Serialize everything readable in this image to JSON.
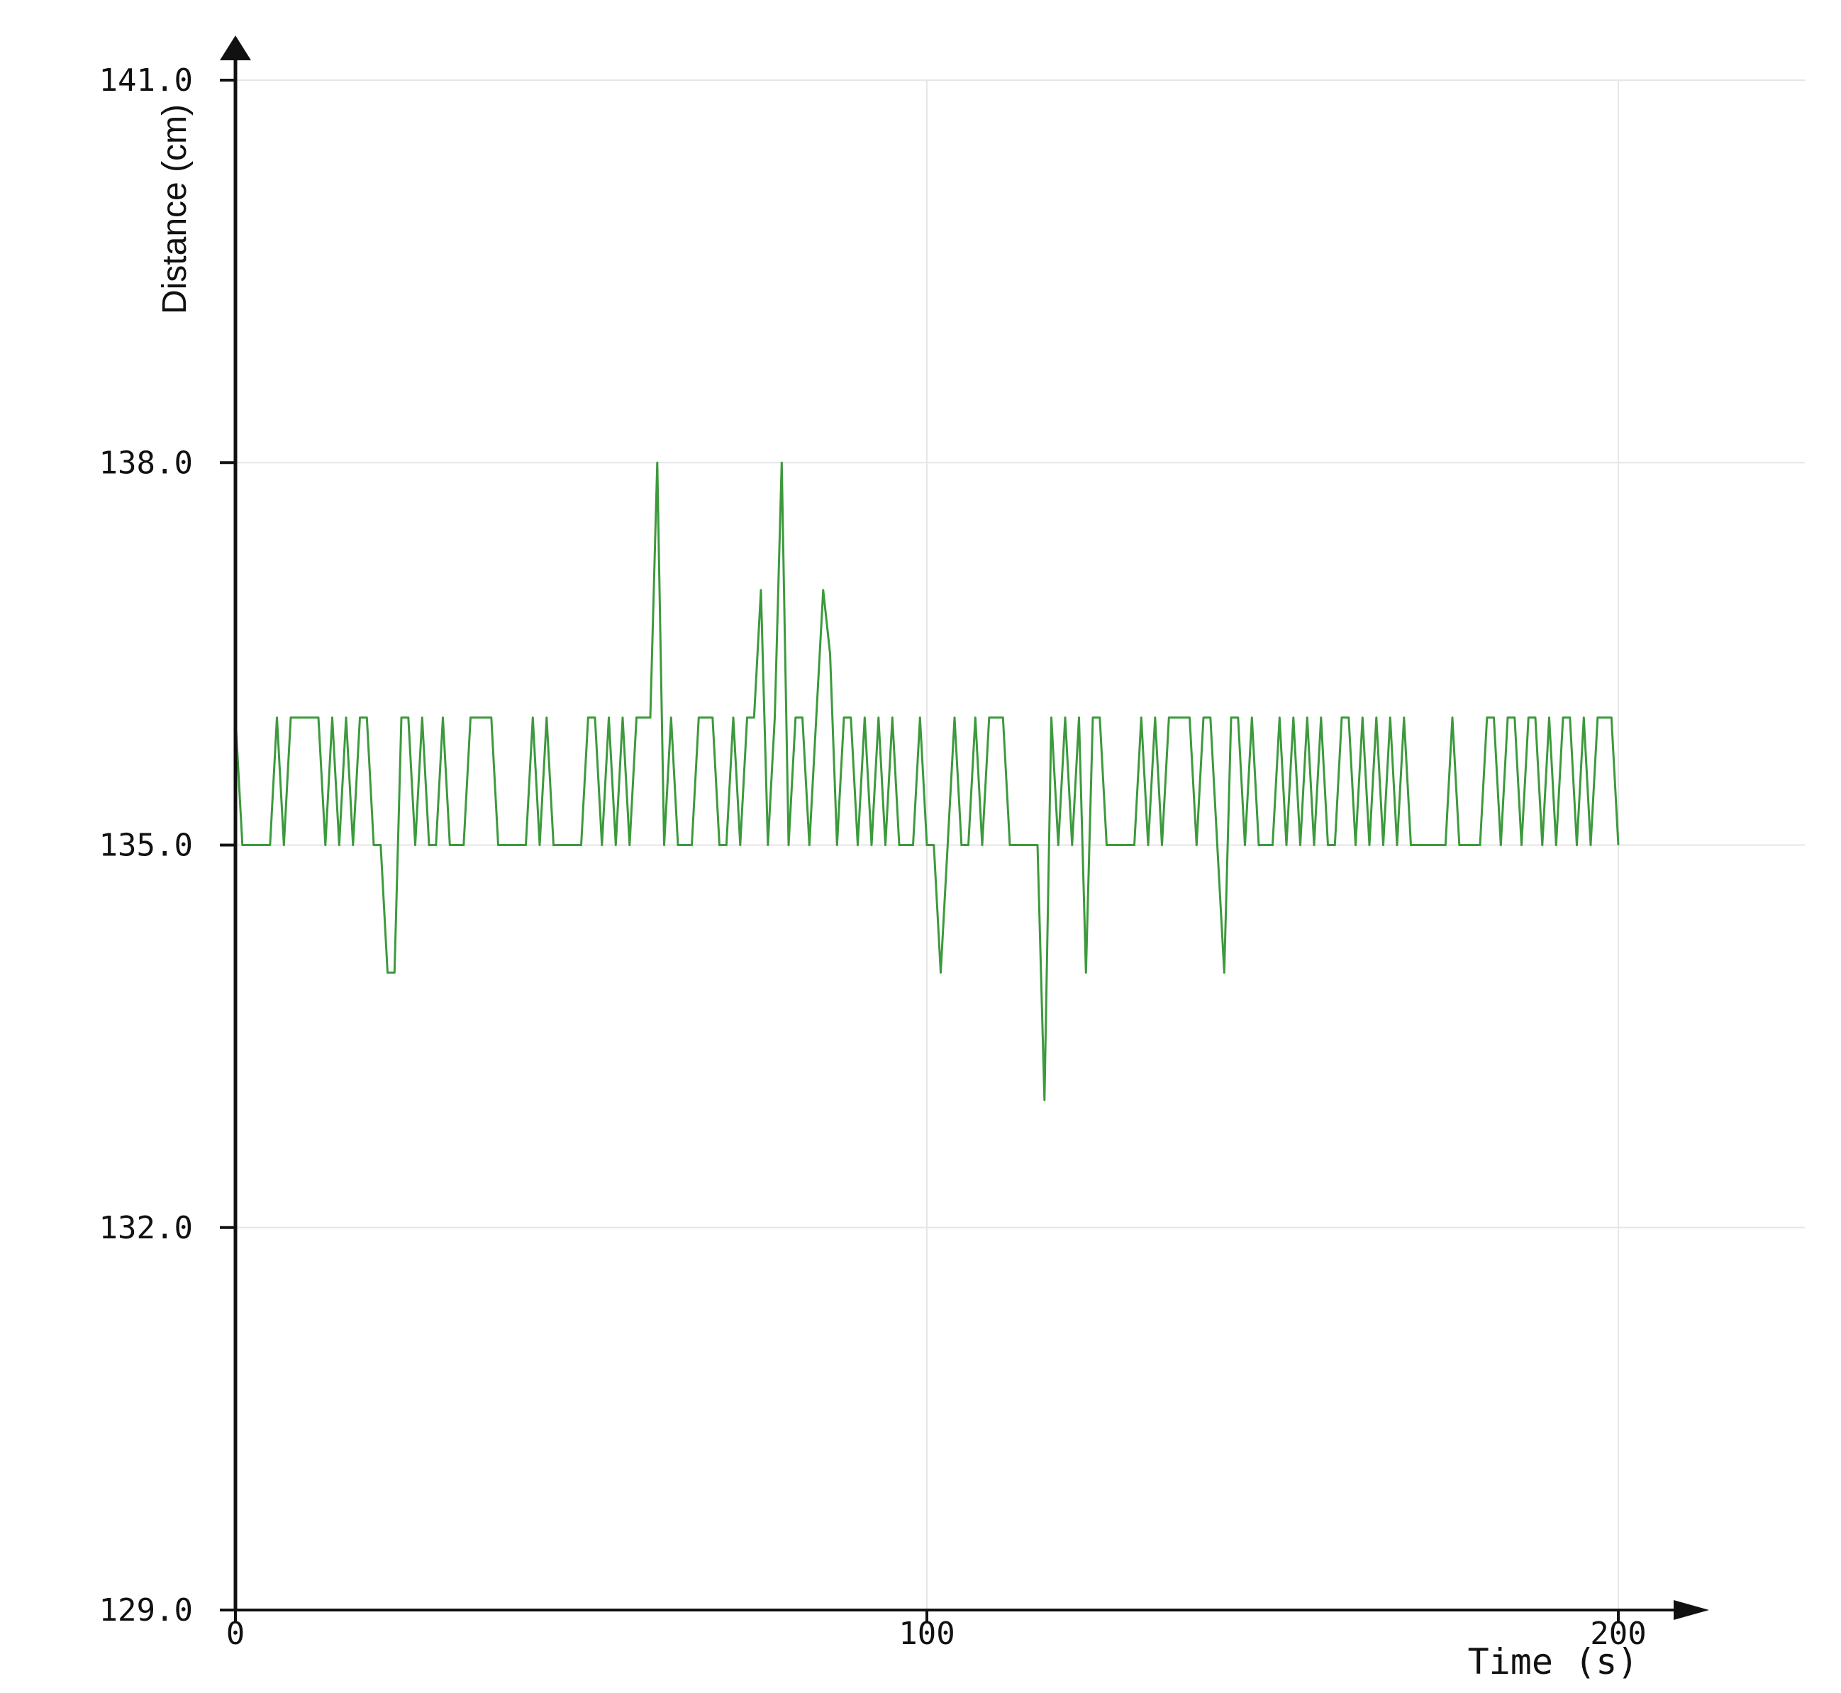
{
  "chart_data": {
    "type": "line",
    "title": "",
    "xlabel": "Time (s)",
    "ylabel": "Distance (cm)",
    "xlim": [
      0,
      200
    ],
    "ylim": [
      129,
      141
    ],
    "x_ticks": [
      0,
      100,
      200
    ],
    "x_tick_labels": [
      "0",
      "100",
      "200"
    ],
    "y_ticks": [
      129,
      132,
      135,
      138,
      141
    ],
    "y_tick_labels": [
      "129.0",
      "132.0",
      "135.0",
      "138.0",
      "141.0"
    ],
    "grid": true,
    "legend": "none",
    "colors": {
      "line": "#3c9a3c",
      "axis": "#111111",
      "grid": "#e6e6e6"
    },
    "series": [
      {
        "x": [
          0,
          1,
          2,
          3,
          4,
          5,
          6,
          7,
          8,
          9,
          10,
          11,
          12,
          13,
          14,
          15,
          16,
          17,
          18,
          19,
          20,
          21,
          22,
          23,
          24,
          25,
          26,
          27,
          28,
          29,
          30,
          31,
          32,
          33,
          34,
          35,
          36,
          37,
          38,
          39,
          40,
          41,
          42,
          43,
          44,
          45,
          46,
          47,
          48,
          49,
          50,
          51,
          52,
          53,
          54,
          55,
          56,
          57,
          58,
          59,
          60,
          61,
          62,
          63,
          64,
          65,
          66,
          67,
          68,
          69,
          70,
          71,
          72,
          73,
          74,
          75,
          76,
          77,
          78,
          79,
          80,
          81,
          82,
          83,
          84,
          85,
          86,
          87,
          88,
          89,
          90,
          91,
          92,
          93,
          94,
          95,
          96,
          97,
          98,
          99,
          100,
          101,
          102,
          103,
          104,
          105,
          106,
          107,
          108,
          109,
          110,
          111,
          112,
          113,
          114,
          115,
          116,
          117,
          118,
          119,
          120,
          121,
          122,
          123,
          124,
          125,
          126,
          127,
          128,
          129,
          130,
          131,
          132,
          133,
          134,
          135,
          136,
          137,
          138,
          139,
          140,
          141,
          142,
          143,
          144,
          145,
          146,
          147,
          148,
          149,
          150,
          151,
          152,
          153,
          154,
          155,
          156,
          157,
          158,
          159,
          160,
          161,
          162,
          163,
          164,
          165,
          166,
          167,
          168,
          169,
          170,
          171,
          172,
          173,
          174,
          175,
          176,
          177,
          178,
          179,
          180,
          181,
          182,
          183,
          184,
          185,
          186,
          187,
          188,
          189,
          190,
          191,
          192,
          193,
          194,
          195,
          196,
          197,
          198,
          199,
          200
        ],
        "y": [
          136,
          135,
          135,
          135,
          135,
          135,
          136,
          135,
          136,
          136,
          136,
          136,
          136,
          135,
          136,
          135,
          136,
          135,
          136,
          136,
          135,
          135,
          134,
          134,
          136,
          136,
          135,
          136,
          135,
          135,
          136,
          135,
          135,
          135,
          136,
          136,
          136,
          136,
          135,
          135,
          135,
          135,
          135,
          136,
          135,
          136,
          135,
          135,
          135,
          135,
          135,
          136,
          136,
          135,
          136,
          135,
          136,
          135,
          136,
          136,
          136,
          138,
          135,
          136,
          135,
          135,
          135,
          136,
          136,
          136,
          135,
          135,
          136,
          135,
          136,
          136,
          137,
          135,
          136,
          138,
          135,
          136,
          136,
          135,
          136,
          137,
          136.5,
          135,
          136,
          136,
          135,
          136,
          135,
          136,
          135,
          136,
          135,
          135,
          135,
          136,
          135,
          135,
          134,
          135,
          136,
          135,
          135,
          136,
          135,
          136,
          136,
          136,
          135,
          135,
          135,
          135,
          135,
          133,
          136,
          135,
          136,
          135,
          136,
          134,
          136,
          136,
          135,
          135,
          135,
          135,
          135,
          136,
          135,
          136,
          135,
          136,
          136,
          136,
          136,
          135,
          136,
          136,
          135,
          134,
          136,
          136,
          135,
          136,
          135,
          135,
          135,
          136,
          135,
          136,
          135,
          136,
          135,
          136,
          135,
          135,
          136,
          136,
          135,
          136,
          135,
          136,
          135,
          136,
          135,
          136,
          135,
          135,
          135,
          135,
          135,
          135,
          136,
          135,
          135,
          135,
          135,
          136,
          136,
          135,
          136,
          136,
          135,
          136,
          136,
          135,
          136,
          135,
          136,
          136,
          135,
          136,
          135,
          136,
          136,
          136,
          135
        ]
      }
    ]
  }
}
